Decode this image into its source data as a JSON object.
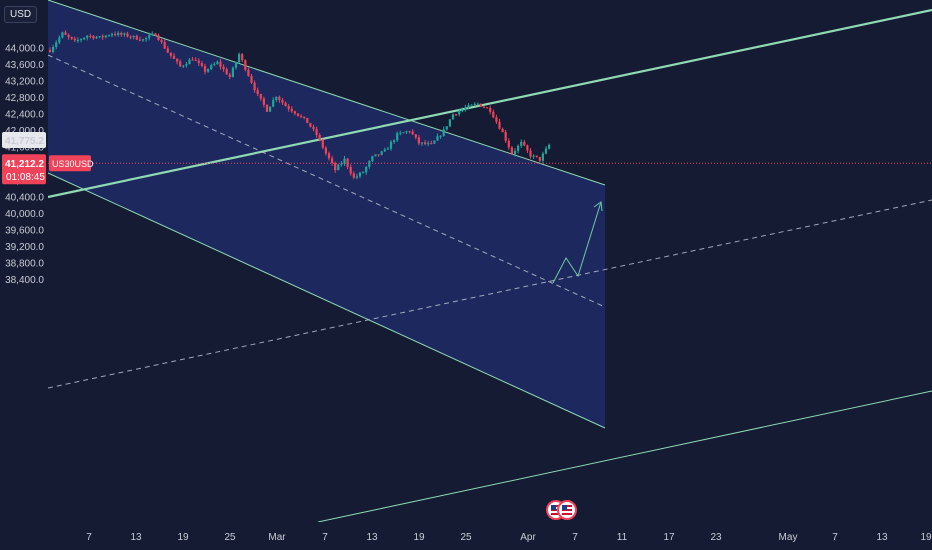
{
  "header": {
    "currency": "USD"
  },
  "colors": {
    "background": "#151b33",
    "channel_fill": "#1f2c66",
    "channel_line": "#8fd9b3",
    "dashed": "#c4c8d6",
    "up": "#1ea69a",
    "down": "#f0435a",
    "price_line": "#f0435a",
    "last_label_bg": "#f0435a",
    "ref_label_bg": "#e6e8ee",
    "arrow": "#6fc9a2"
  },
  "icons": {
    "events": "flag-us-icon"
  },
  "chart_data": {
    "type": "candlestick",
    "symbol_label": "US30USD",
    "y_axis": {
      "ticks": [
        "44,000.0",
        "43,600.0",
        "43,200.0",
        "42,800.0",
        "42,400.0",
        "42,000.0",
        "41,600.0",
        "40,800.0",
        "40,400.0",
        "40,000.0",
        "39,600.0",
        "39,200.0",
        "38,800.0",
        "38,400.0"
      ],
      "tick_values": [
        44000,
        43600,
        43200,
        42800,
        42400,
        42000,
        41600,
        40800,
        40400,
        40000,
        39600,
        39200,
        38800,
        38400
      ],
      "range": [
        38300,
        44450
      ]
    },
    "x_axis": {
      "ticks": [
        "7",
        "13",
        "19",
        "25",
        "Mar",
        "7",
        "13",
        "19",
        "25",
        "Apr",
        "7",
        "11",
        "17",
        "23",
        "May",
        "7",
        "13",
        "19"
      ]
    },
    "price_labels": {
      "reference": "41,775.2",
      "last": "41,212.2",
      "countdown": "01:08:45",
      "last_value": 41212.2,
      "reference_value": 41775.2
    },
    "path_keypoints": [
      [
        0,
        43950
      ],
      [
        4,
        44350
      ],
      [
        8,
        44150
      ],
      [
        12,
        44300
      ],
      [
        16,
        44250
      ],
      [
        20,
        44350
      ],
      [
        25,
        44300
      ],
      [
        30,
        44200
      ],
      [
        34,
        44350
      ],
      [
        38,
        43900
      ],
      [
        42,
        43550
      ],
      [
        46,
        43750
      ],
      [
        50,
        43450
      ],
      [
        54,
        43650
      ],
      [
        58,
        43300
      ],
      [
        61,
        43850
      ],
      [
        64,
        43350
      ],
      [
        67,
        42850
      ],
      [
        70,
        42500
      ],
      [
        73,
        42850
      ],
      [
        76,
        42600
      ],
      [
        79,
        42450
      ],
      [
        83,
        42200
      ],
      [
        86,
        41900
      ],
      [
        89,
        41450
      ],
      [
        92,
        41050
      ],
      [
        95,
        41300
      ],
      [
        98,
        40850
      ],
      [
        101,
        41000
      ],
      [
        104,
        41350
      ],
      [
        108,
        41500
      ],
      [
        112,
        41900
      ],
      [
        116,
        42000
      ],
      [
        119,
        41700
      ],
      [
        123,
        41650
      ],
      [
        127,
        42000
      ],
      [
        130,
        42400
      ],
      [
        134,
        42550
      ],
      [
        138,
        42650
      ],
      [
        142,
        42500
      ],
      [
        146,
        41950
      ],
      [
        149,
        41450
      ],
      [
        152,
        41700
      ],
      [
        155,
        41400
      ],
      [
        158,
        41300
      ],
      [
        161,
        41650
      ]
    ]
  }
}
